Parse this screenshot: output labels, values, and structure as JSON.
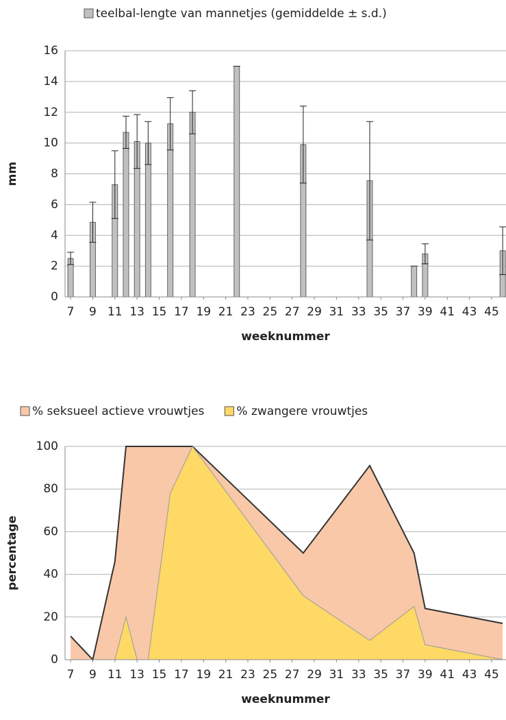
{
  "chart_data": [
    {
      "type": "bar",
      "x_label": "weeknummer",
      "y_label": "mm",
      "x": [
        7,
        9,
        11,
        12,
        13,
        14,
        16,
        18,
        22,
        28,
        34,
        38,
        39,
        46
      ],
      "series": [
        {
          "name": "teelbal-lengte van mannetjes (gemiddelde ± s.d.)",
          "color": "#c0c0c0",
          "values": [
            2.5,
            4.85,
            7.3,
            10.7,
            10.1,
            10.0,
            11.25,
            12.0,
            15.0,
            9.9,
            7.55,
            2.0,
            2.8,
            3.0
          ],
          "errors": [
            0.4,
            1.3,
            2.2,
            1.05,
            1.75,
            1.4,
            1.7,
            1.4,
            0,
            2.5,
            3.85,
            0,
            0.65,
            1.55
          ]
        }
      ],
      "xlim": [
        6.5,
        46.3
      ],
      "xticks": [
        7,
        9,
        11,
        13,
        15,
        17,
        19,
        21,
        23,
        25,
        27,
        29,
        31,
        33,
        35,
        37,
        39,
        41,
        43,
        45
      ],
      "ylim": [
        0,
        16
      ],
      "yticks": [
        0,
        2,
        4,
        6,
        8,
        10,
        12,
        14,
        16
      ],
      "grid": true
    },
    {
      "type": "area",
      "x_label": "weeknummer",
      "y_label": "percentage",
      "x": [
        7,
        9,
        11,
        12,
        13,
        14,
        16,
        18,
        22,
        28,
        34,
        38,
        39,
        46
      ],
      "series": [
        {
          "name": "% seksueel actieve vrouwtjes",
          "color": "#f8c8a8",
          "line_color": "#333333",
          "values": [
            11,
            0,
            46,
            100,
            100,
            100,
            100,
            100,
            80,
            50,
            91,
            50,
            24,
            17
          ]
        },
        {
          "name": "% zwangere vrouwtjes",
          "color": "#ffd966",
          "line_color": "#999999",
          "values": [
            0,
            0,
            0,
            20,
            0,
            0,
            78,
            100,
            72,
            30,
            9,
            25,
            7,
            0
          ]
        }
      ],
      "xlim": [
        6.5,
        46.3
      ],
      "xticks": [
        7,
        9,
        11,
        13,
        15,
        17,
        19,
        21,
        23,
        25,
        27,
        29,
        31,
        33,
        35,
        37,
        39,
        41,
        43,
        45
      ],
      "ylim": [
        0,
        100
      ],
      "yticks": [
        0,
        20,
        40,
        60,
        80,
        100
      ],
      "grid": true
    }
  ]
}
